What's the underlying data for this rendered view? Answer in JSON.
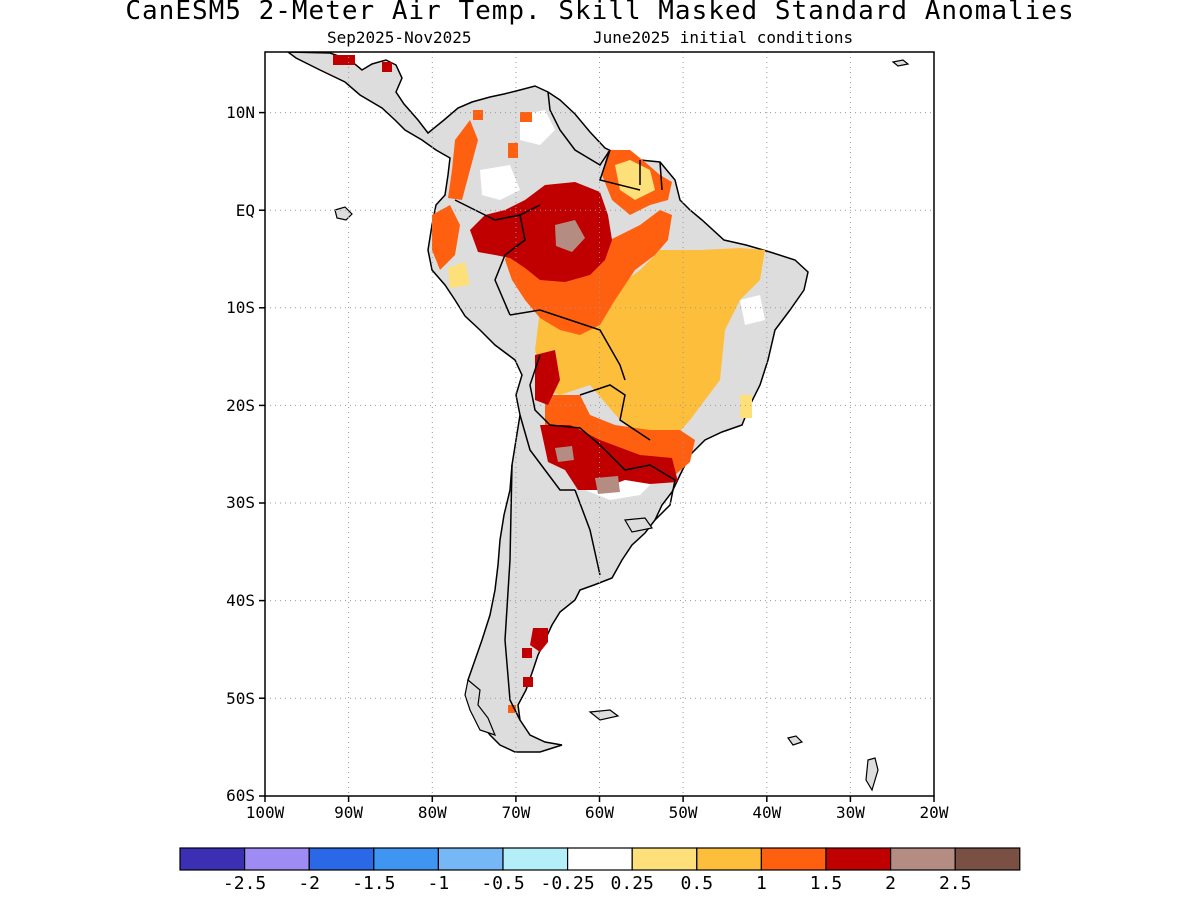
{
  "title": "CanESM5 2-Meter Air Temp. Skill Masked Standard Anomalies",
  "subtitle_left": "Sep2025-Nov2025",
  "subtitle_right": "June2025 initial conditions",
  "map": {
    "lon_range": [
      -100,
      -20
    ],
    "lat_range": [
      -60,
      15
    ],
    "lat_tick_labels": [
      "10N",
      "EQ",
      "10S",
      "20S",
      "30S",
      "40S",
      "50S",
      "60S"
    ],
    "lon_tick_labels": [
      "100W",
      "90W",
      "80W",
      "70W",
      "60W",
      "50W",
      "40W",
      "30W",
      "20W"
    ],
    "grid": "dotted",
    "land_color": "#dddddd",
    "coastline_color": "#000000"
  },
  "colorbar": {
    "colors": [
      "#3b2fb3",
      "#9e8cf4",
      "#2b68e8",
      "#3f95f2",
      "#76b7f6",
      "#b3eef9",
      "#ffffff",
      "#fee07a",
      "#fdbe3c",
      "#ff6010",
      "#c00000",
      "#b48c82",
      "#7a5044"
    ],
    "labels": [
      "-2.5",
      "-2",
      "-1.5",
      "-1",
      "-0.5",
      "-0.25",
      "0.25",
      "0.5",
      "1",
      "1.5",
      "2",
      "2.5"
    ]
  },
  "anomaly_colors": {
    "light": "#fdbe3c",
    "pale": "#fee07a",
    "medium": "#ff6010",
    "strong": "#c00000",
    "extreme": "#b48c82"
  }
}
